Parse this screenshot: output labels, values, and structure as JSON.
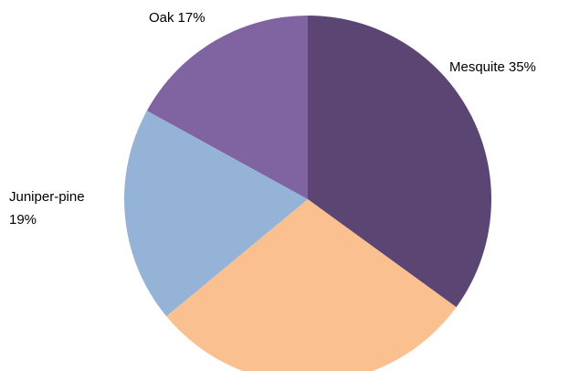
{
  "chart_data": {
    "type": "pie",
    "categories": [
      "Mesquite",
      null,
      "Juniper-pine",
      "Oak"
    ],
    "values": [
      35,
      29,
      19,
      17
    ],
    "value_labels": [
      "35%",
      null,
      "19%",
      "17%"
    ],
    "colors": [
      "#5b4573",
      "#fac090",
      "#95b3d7",
      "#8064a2"
    ]
  }
}
